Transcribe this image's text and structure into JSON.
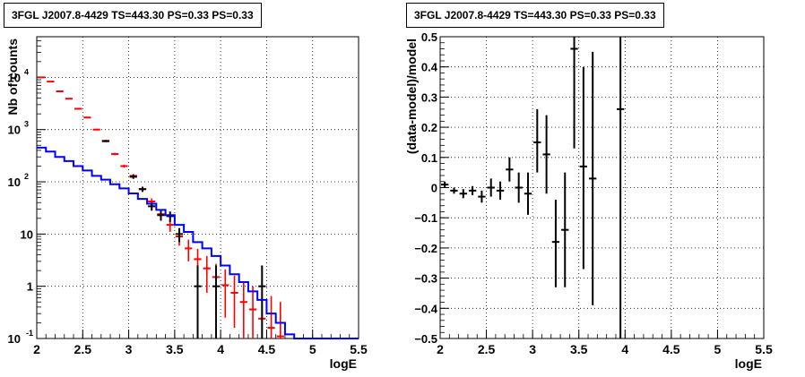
{
  "chart_data": [
    {
      "type": "scatter",
      "title": "3FGL J2007.8-4429 TS=443.30 PS=0.33 PS=0.33",
      "xlabel": "logE",
      "ylabel": "Nb of counts",
      "xlim": [
        2,
        5.5
      ],
      "ylim": [
        0.1,
        60000
      ],
      "yscale": "log",
      "grid": true,
      "x_ticks": [
        "2",
        "2.5",
        "3",
        "3.5",
        "4",
        "4.5",
        "5",
        "5.5"
      ],
      "y_ticks": [
        {
          "value": 0.1,
          "label": "10",
          "sup": "-1"
        },
        {
          "value": 1,
          "label": "1",
          "sup": ""
        },
        {
          "value": 10,
          "label": "10",
          "sup": ""
        },
        {
          "value": 100,
          "label": "10",
          "sup": "2"
        },
        {
          "value": 1000,
          "label": "10",
          "sup": "3"
        },
        {
          "value": 10000,
          "label": "10",
          "sup": "4"
        }
      ],
      "series": [
        {
          "color": "#ff0000",
          "style": "errorbars",
          "points": [
            {
              "x": 2.05,
              "y": 10000,
              "lo": 9800,
              "hi": 10200
            },
            {
              "x": 2.15,
              "y": 8300,
              "lo": 8100,
              "hi": 8500
            },
            {
              "x": 2.25,
              "y": 5400,
              "lo": 5250,
              "hi": 5550
            },
            {
              "x": 2.35,
              "y": 3900,
              "lo": 3780,
              "hi": 4020
            },
            {
              "x": 2.45,
              "y": 2500,
              "lo": 2420,
              "hi": 2580
            },
            {
              "x": 2.55,
              "y": 1700,
              "lo": 1640,
              "hi": 1760
            },
            {
              "x": 2.65,
              "y": 1000,
              "lo": 965,
              "hi": 1035
            },
            {
              "x": 2.75,
              "y": 610,
              "lo": 585,
              "hi": 635
            },
            {
              "x": 2.85,
              "y": 340,
              "lo": 322,
              "hi": 358
            },
            {
              "x": 2.95,
              "y": 200,
              "lo": 187,
              "hi": 213
            },
            {
              "x": 3.05,
              "y": 130,
              "lo": 119,
              "hi": 141
            },
            {
              "x": 3.15,
              "y": 73,
              "lo": 65,
              "hi": 81
            },
            {
              "x": 3.25,
              "y": 42,
              "lo": 36,
              "hi": 48
            },
            {
              "x": 3.35,
              "y": 24,
              "lo": 19,
              "hi": 29
            },
            {
              "x": 3.45,
              "y": 15,
              "lo": 11,
              "hi": 19
            },
            {
              "x": 3.55,
              "y": 9,
              "lo": 6,
              "hi": 12
            },
            {
              "x": 3.65,
              "y": 5.3,
              "lo": 3,
              "hi": 7.8
            },
            {
              "x": 3.75,
              "y": 3.3,
              "lo": 1.5,
              "hi": 5.2
            },
            {
              "x": 3.85,
              "y": 2.2,
              "lo": 0.75,
              "hi": 3.8
            },
            {
              "x": 3.95,
              "y": 1.5,
              "lo": 0.4,
              "hi": 2.7
            },
            {
              "x": 4.05,
              "y": 1.05,
              "lo": 0.25,
              "hi": 2.1
            },
            {
              "x": 4.15,
              "y": 0.75,
              "lo": 0.16,
              "hi": 1.6
            },
            {
              "x": 4.25,
              "y": 0.5,
              "lo": 0.1,
              "hi": 1.25
            },
            {
              "x": 4.35,
              "y": 0.36,
              "lo": 0.1,
              "hi": 1.0
            },
            {
              "x": 4.45,
              "y": 0.24,
              "lo": 0.1,
              "hi": 0.8
            },
            {
              "x": 4.55,
              "y": 0.16,
              "lo": 0.1,
              "hi": 0.65
            },
            {
              "x": 4.65,
              "y": 0.11,
              "lo": 0.1,
              "hi": 0.5
            }
          ]
        },
        {
          "color": "#000000",
          "style": "errorbars",
          "points": [
            {
              "x": 2.75,
              "y": 600,
              "lo": 576,
              "hi": 624
            },
            {
              "x": 3.05,
              "y": 125,
              "lo": 114,
              "hi": 136
            },
            {
              "x": 3.15,
              "y": 72,
              "lo": 64,
              "hi": 80
            },
            {
              "x": 3.25,
              "y": 34,
              "lo": 28,
              "hi": 40
            },
            {
              "x": 3.35,
              "y": 23,
              "lo": 18,
              "hi": 28
            },
            {
              "x": 3.45,
              "y": 22,
              "lo": 17,
              "hi": 27
            },
            {
              "x": 3.55,
              "y": 10,
              "lo": 7,
              "hi": 13
            },
            {
              "x": 3.75,
              "y": 1,
              "lo": 0.1,
              "hi": 2.5
            },
            {
              "x": 3.95,
              "y": 1,
              "lo": 0.1,
              "hi": 2.5
            },
            {
              "x": 4.45,
              "y": 1,
              "lo": 0.1,
              "hi": 2.5
            }
          ]
        },
        {
          "color": "#0000ff",
          "style": "step",
          "edges": [
            2.0,
            2.1,
            2.2,
            2.3,
            2.4,
            2.5,
            2.6,
            2.7,
            2.8,
            2.9,
            3.0,
            3.1,
            3.2,
            3.3,
            3.4,
            3.5,
            3.6,
            3.7,
            3.8,
            3.9,
            4.0,
            4.1,
            4.2,
            4.3,
            4.4,
            4.5,
            4.6,
            4.7,
            4.8,
            4.9,
            5.0,
            5.1,
            5.2,
            5.3,
            5.4,
            5.5
          ],
          "values": [
            450,
            380,
            300,
            250,
            200,
            165,
            130,
            110,
            90,
            75,
            60,
            47,
            38,
            29,
            23,
            15,
            11,
            7,
            5.3,
            3.8,
            2.5,
            1.7,
            1.2,
            0.8,
            0.55,
            0.3,
            0.2,
            0.12,
            0.1,
            0.1,
            0.1,
            0.1,
            0.1,
            0.1,
            0.1
          ]
        }
      ]
    },
    {
      "type": "scatter",
      "title": "3FGL J2007.8-4429 TS=443.30 PS=0.33 PS=0.33",
      "xlabel": "logE",
      "ylabel": "(data-model)/model",
      "xlim": [
        2,
        5.5
      ],
      "ylim": [
        -0.5,
        0.5
      ],
      "grid": true,
      "x_ticks": [
        "2",
        "2.5",
        "3",
        "3.5",
        "4",
        "4.5",
        "5",
        "5.5"
      ],
      "y_ticks": [
        "−0.5",
        "−0.4",
        "−0.3",
        "−0.2",
        "−0.1",
        "0",
        "0.1",
        "0.2",
        "0.3",
        "0.4",
        "0.5"
      ],
      "series": [
        {
          "color": "#000000",
          "style": "errorbars",
          "points": [
            {
              "x": 2.05,
              "y": 0.01,
              "lo": 0.0,
              "hi": 0.02
            },
            {
              "x": 2.15,
              "y": -0.01,
              "lo": -0.02,
              "hi": 0.0
            },
            {
              "x": 2.25,
              "y": -0.02,
              "lo": -0.035,
              "hi": -0.005
            },
            {
              "x": 2.35,
              "y": -0.01,
              "lo": -0.025,
              "hi": 0.005
            },
            {
              "x": 2.45,
              "y": -0.03,
              "lo": -0.05,
              "hi": -0.01
            },
            {
              "x": 2.55,
              "y": 0.0,
              "lo": -0.03,
              "hi": 0.03
            },
            {
              "x": 2.65,
              "y": -0.01,
              "lo": -0.04,
              "hi": 0.02
            },
            {
              "x": 2.75,
              "y": 0.06,
              "lo": 0.02,
              "hi": 0.1
            },
            {
              "x": 2.85,
              "y": 0.0,
              "lo": -0.05,
              "hi": 0.05
            },
            {
              "x": 2.95,
              "y": -0.02,
              "lo": -0.09,
              "hi": 0.05
            },
            {
              "x": 3.05,
              "y": 0.15,
              "lo": 0.05,
              "hi": 0.26
            },
            {
              "x": 3.15,
              "y": 0.11,
              "lo": -0.02,
              "hi": 0.24
            },
            {
              "x": 3.25,
              "y": -0.18,
              "lo": -0.33,
              "hi": -0.04
            },
            {
              "x": 3.35,
              "y": -0.14,
              "lo": -0.33,
              "hi": 0.05
            },
            {
              "x": 3.45,
              "y": 0.46,
              "lo": 0.13,
              "hi": 0.5
            },
            {
              "x": 3.55,
              "y": 0.07,
              "lo": -0.27,
              "hi": 0.4
            },
            {
              "x": 3.65,
              "y": 0.03,
              "lo": -0.39,
              "hi": 0.45
            },
            {
              "x": 3.95,
              "y": 0.26,
              "lo": -0.5,
              "hi": 0.5
            }
          ]
        }
      ]
    }
  ]
}
